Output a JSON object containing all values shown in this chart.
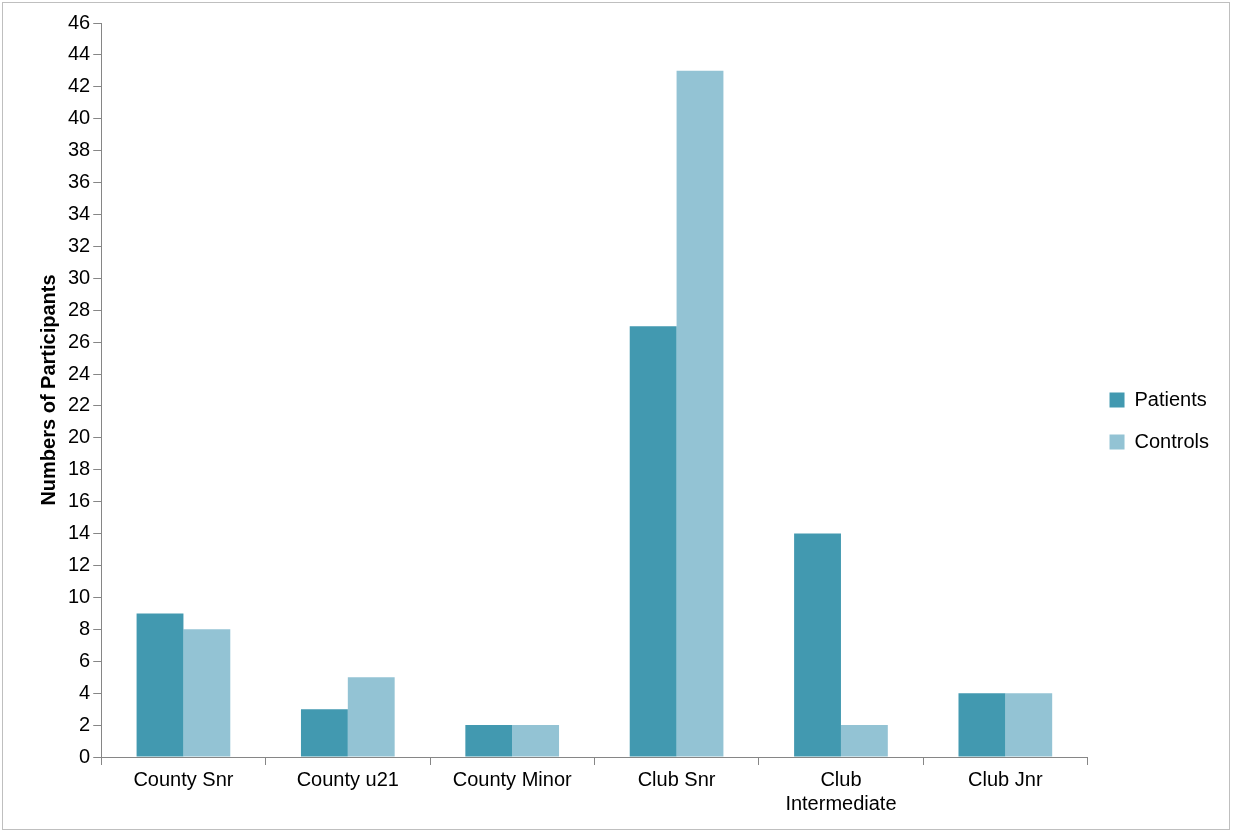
{
  "chart_data": {
    "type": "bar",
    "ylabel": "Numbers of Participants",
    "categories": [
      "County Snr",
      "County u21",
      "County Minor",
      "Club Snr",
      "Club Intermediate",
      "Club Jnr"
    ],
    "series": [
      {
        "name": "Patients",
        "color": "#4299b0",
        "values": [
          9,
          3,
          2,
          27,
          14,
          4
        ]
      },
      {
        "name": "Controls",
        "color": "#93c3d4",
        "values": [
          8,
          5,
          2,
          43,
          2,
          4
        ]
      }
    ],
    "ylim": [
      0,
      46
    ],
    "yticks": [
      0,
      2,
      4,
      6,
      8,
      10,
      12,
      14,
      16,
      18,
      20,
      22,
      24,
      26,
      28,
      30,
      32,
      34,
      36,
      38,
      40,
      42,
      44,
      46
    ],
    "grid": false,
    "legend": "right"
  }
}
